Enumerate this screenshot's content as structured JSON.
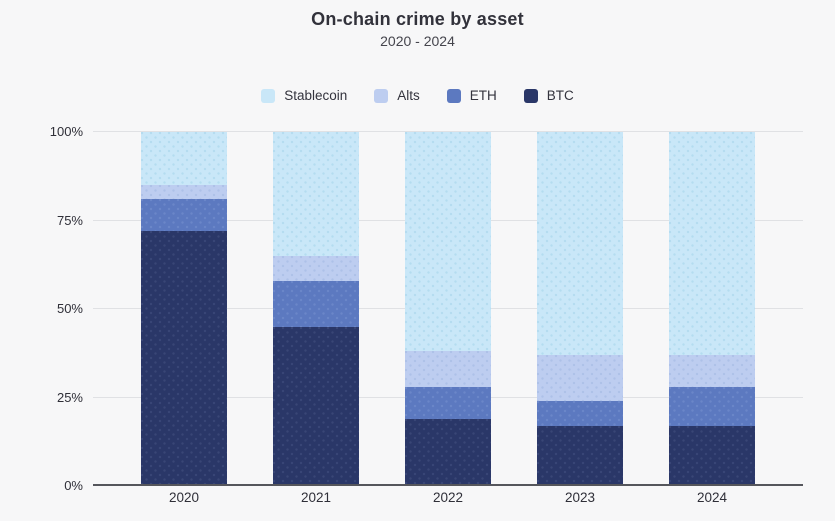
{
  "header": {
    "title": "On-chain crime by asset",
    "subtitle": "2020 - 2024"
  },
  "chart_data": {
    "type": "bar",
    "stacked": true,
    "title": "On-chain crime by asset",
    "subtitle": "2020 - 2024",
    "xlabel": "",
    "ylabel": "",
    "unit": "%",
    "ylim": [
      0,
      100
    ],
    "grid": true,
    "legend_position": "top",
    "categories": [
      "2020",
      "2021",
      "2022",
      "2023",
      "2024"
    ],
    "series": [
      {
        "name": "Stablecoin",
        "values": [
          15,
          35,
          62,
          63,
          63
        ],
        "color": "#c9e7f8",
        "dot_color": "#b4dcf0"
      },
      {
        "name": "Alts",
        "values": [
          4,
          7,
          10,
          13,
          9
        ],
        "color": "#bdcdf0",
        "dot_color": "#adc1e8"
      },
      {
        "name": "ETH",
        "values": [
          9,
          13,
          9,
          7,
          11
        ],
        "color": "#5c79c0",
        "dot_color": "#6b86c8"
      },
      {
        "name": "BTC",
        "values": [
          72,
          45,
          19,
          17,
          17
        ],
        "color": "#2a3768",
        "dot_color": "#394676"
      }
    ],
    "yticks": [
      {
        "value": 0,
        "label": "0%"
      },
      {
        "value": 25,
        "label": "25%"
      },
      {
        "value": 50,
        "label": "50%"
      },
      {
        "value": 75,
        "label": "75%"
      },
      {
        "value": 100,
        "label": "100%"
      }
    ]
  },
  "colors": {
    "background": "#f7f7f8",
    "gridline": "#e0e1e4",
    "axis_line": "#55565c",
    "title_text": "#32323b",
    "subtitle_text": "#45454d",
    "tick_text": "#2f2f38"
  }
}
